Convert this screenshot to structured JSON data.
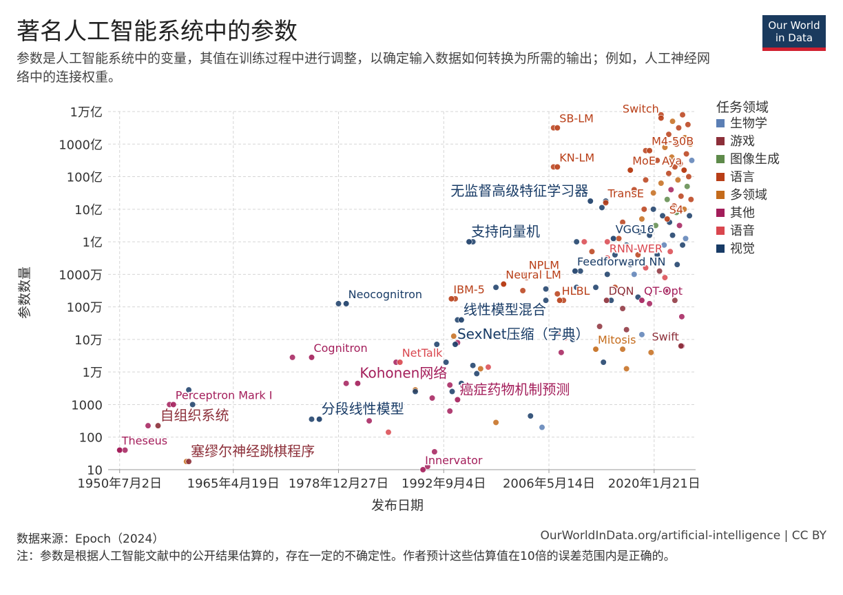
{
  "title": "著名人工智能系统中的参数",
  "subtitle": "参数是人工智能系统中的变量，其值在训练过程中进行调整，以确定输入数据如何转换为所需的输出；例如，人工神经网络中的连接权重。",
  "logo": {
    "line1": "Our World",
    "line2": "in Data",
    "bg_color": "#1a3a5e",
    "bar_color": "#d1202f"
  },
  "source_text": "数据来源：Epoch（2024）",
  "link_text": "OurWorldInData.org/artificial-intelligence | CC BY",
  "note_text": "注：参数是根据人工智能文献中的公开结果估算的，存在一定的不确定性。作者预计这些估算值在10倍的误差范围内是正确的。",
  "chart_data": {
    "type": "scatter",
    "xlabel": "发布日期",
    "ylabel": "参数数量",
    "xlim": [
      1949.0,
      2025.5
    ],
    "ylim_log10": [
      1,
      12
    ],
    "y_scale": "log",
    "grid": true,
    "x_ticks": [
      {
        "x": 1950.5,
        "label": "1950年7月2日"
      },
      {
        "x": 1965.3,
        "label": "1965年4月19日"
      },
      {
        "x": 1979.0,
        "label": "1978年12月27日"
      },
      {
        "x": 1992.7,
        "label": "1992年9月4日"
      },
      {
        "x": 2006.4,
        "label": "2006年5月14日"
      },
      {
        "x": 2020.1,
        "label": "2020年1月21日"
      }
    ],
    "y_ticks": [
      {
        "log": 1,
        "label": "10"
      },
      {
        "log": 2,
        "label": "100"
      },
      {
        "log": 3,
        "label": "1000"
      },
      {
        "log": 4,
        "label": "1万"
      },
      {
        "log": 5,
        "label": "10万"
      },
      {
        "log": 6,
        "label": "100万"
      },
      {
        "log": 7,
        "label": "1000万"
      },
      {
        "log": 8,
        "label": "1亿"
      },
      {
        "log": 9,
        "label": "10亿"
      },
      {
        "log": 10,
        "label": "100亿"
      },
      {
        "log": 11,
        "label": "1000亿"
      },
      {
        "log": 12,
        "label": "1万亿"
      }
    ],
    "legend": {
      "title": "任务领域",
      "placement": "right",
      "items": [
        {
          "name": "生物学",
          "color": "#5b7fb5"
        },
        {
          "name": "游戏",
          "color": "#8c2f39"
        },
        {
          "name": "图像生成",
          "color": "#5e8a4a"
        },
        {
          "name": "语言",
          "color": "#b83e17"
        },
        {
          "name": "多领域",
          "color": "#c46b1b"
        },
        {
          "name": "其他",
          "color": "#a31d5a"
        },
        {
          "name": "语音",
          "color": "#d9464e"
        },
        {
          "name": "视觉",
          "color": "#183b66"
        }
      ]
    },
    "labeled_points": [
      {
        "name": "Theseus",
        "x": 1950.5,
        "y": 1.6,
        "cat": "其他",
        "color": "#a31d5a"
      },
      {
        "name": "Perceptron Mark I",
        "x": 1957.5,
        "y": 3.0,
        "cat": "其他",
        "color": "#a31d5a"
      },
      {
        "name": "自组织系统",
        "x": 1955.5,
        "y": 2.35,
        "cat": "游戏",
        "color": "#8c2f39"
      },
      {
        "name": "塞缪尔神经跳棋程序",
        "x": 1959.5,
        "y": 1.25,
        "cat": "游戏",
        "color": "#8c2f39"
      },
      {
        "name": "Cognitron",
        "x": 1975.5,
        "y": 4.45,
        "cat": "其他",
        "color": "#a31d5a"
      },
      {
        "name": "Neocognitron",
        "x": 1980.0,
        "y": 6.1,
        "cat": "视觉",
        "color": "#183b66"
      },
      {
        "name": "分段线性模型",
        "x": 1976.5,
        "y": 2.55,
        "cat": "视觉",
        "color": "#183b66"
      },
      {
        "name": "Kohonen网络",
        "x": 1981.5,
        "y": 3.65,
        "cat": "其他",
        "color": "#a31d5a"
      },
      {
        "name": "NetTalk",
        "x": 1987.0,
        "y": 4.3,
        "cat": "语音",
        "color": "#d9464e"
      },
      {
        "name": "Innervator",
        "x": 1990.0,
        "y": 1.0,
        "cat": "其他",
        "color": "#a31d5a"
      },
      {
        "name": "癌症药物机制预测",
        "x": 1994.5,
        "y": 3.15,
        "cat": "其他",
        "color": "#a31d5a"
      },
      {
        "name": "SexNet压缩（字典）",
        "x": 1994.2,
        "y": 4.85,
        "cat": "视觉",
        "color": "#183b66"
      },
      {
        "name": "IBM-5",
        "x": 1993.7,
        "y": 6.25,
        "cat": "语言",
        "color": "#b83e17"
      },
      {
        "name": "线性模型混合",
        "x": 1995.0,
        "y": 5.6,
        "cat": "视觉",
        "color": "#183b66"
      },
      {
        "name": "支持向量机",
        "x": 1996.0,
        "y": 8.0,
        "cat": "视觉",
        "color": "#183b66"
      },
      {
        "name": "无监督高级特征学习器",
        "x": 2011.8,
        "y": 9.25,
        "cat": "视觉",
        "color": "#183b66"
      },
      {
        "name": "Neural LM",
        "x": 2000.5,
        "y": 6.7,
        "cat": "语言",
        "color": "#b83e17"
      },
      {
        "name": "NPLM",
        "x": 2003.5,
        "y": 7.0,
        "cat": "语言",
        "color": "#b83e17"
      },
      {
        "name": "HLBL",
        "x": 2007.8,
        "y": 6.2,
        "cat": "语言",
        "color": "#b83e17"
      },
      {
        "name": "Feedforward NN",
        "x": 2009.8,
        "y": 7.1,
        "cat": "视觉",
        "color": "#183b66"
      },
      {
        "name": "SB-LM",
        "x": 2007.5,
        "y": 11.5,
        "cat": "语言",
        "color": "#b83e17"
      },
      {
        "name": "KN-LM",
        "x": 2007.5,
        "y": 10.3,
        "cat": "语言",
        "color": "#b83e17"
      },
      {
        "name": "M4-50B",
        "x": 2019.5,
        "y": 10.8,
        "cat": "语言",
        "color": "#b83e17"
      },
      {
        "name": "Switch",
        "x": 2021.0,
        "y": 11.8,
        "cat": "语言",
        "color": "#b83e17"
      },
      {
        "name": "MoE",
        "x": 2017.0,
        "y": 10.2,
        "cat": "语言",
        "color": "#b83e17"
      },
      {
        "name": "Aya",
        "x": 2024.0,
        "y": 10.2,
        "cat": "语言",
        "color": "#b83e17"
      },
      {
        "name": "TransE",
        "x": 2013.8,
        "y": 9.2,
        "cat": "语言",
        "color": "#b83e17"
      },
      {
        "name": "S4",
        "x": 2021.8,
        "y": 8.7,
        "cat": "语言",
        "color": "#b83e17"
      },
      {
        "name": "VGG16",
        "x": 2014.8,
        "y": 8.1,
        "cat": "视觉",
        "color": "#183b66"
      },
      {
        "name": "RNN-WER",
        "x": 2014.0,
        "y": 7.5,
        "cat": "语音",
        "color": "#d9464e"
      },
      {
        "name": "DQN",
        "x": 2013.9,
        "y": 6.2,
        "cat": "游戏",
        "color": "#8c2f39"
      },
      {
        "name": "QT-Opt",
        "x": 2018.5,
        "y": 6.2,
        "cat": "其他",
        "color": "#a31d5a"
      },
      {
        "name": "Mitosis",
        "x": 2012.5,
        "y": 4.7,
        "cat": "多领域",
        "color": "#c46b1b"
      },
      {
        "name": "Swift",
        "x": 2023.6,
        "y": 4.8,
        "cat": "游戏",
        "color": "#8c2f39"
      }
    ],
    "points": [
      {
        "x": 1950.5,
        "y": 1.6,
        "c": "#a31d5a"
      },
      {
        "x": 1951.2,
        "y": 1.6,
        "c": "#a31d5a"
      },
      {
        "x": 1954.2,
        "y": 2.35,
        "c": "#a31d5a"
      },
      {
        "x": 1957.0,
        "y": 3.0,
        "c": "#a31d5a"
      },
      {
        "x": 1959.2,
        "y": 1.25,
        "c": "#c46b1b"
      },
      {
        "x": 1959.5,
        "y": 3.45,
        "c": "#183b66"
      },
      {
        "x": 1960.0,
        "y": 3.0,
        "c": "#183b66"
      },
      {
        "x": 1973.0,
        "y": 4.45,
        "c": "#a31d5a"
      },
      {
        "x": 1979.0,
        "y": 6.1,
        "c": "#183b66"
      },
      {
        "x": 1975.5,
        "y": 2.55,
        "c": "#183b66"
      },
      {
        "x": 1980.0,
        "y": 3.65,
        "c": "#a31d5a"
      },
      {
        "x": 1983.0,
        "y": 2.5,
        "c": "#a31d5a"
      },
      {
        "x": 1985.5,
        "y": 2.15,
        "c": "#d9464e"
      },
      {
        "x": 1986.5,
        "y": 4.3,
        "c": "#a31d5a"
      },
      {
        "x": 1989.0,
        "y": 3.45,
        "c": "#c46b1b"
      },
      {
        "x": 1989.0,
        "y": 3.4,
        "c": "#183b66"
      },
      {
        "x": 1990.6,
        "y": 1.1,
        "c": "#a31d5a"
      },
      {
        "x": 1991.5,
        "y": 1.55,
        "c": "#a31d5a"
      },
      {
        "x": 1991.2,
        "y": 3.2,
        "c": "#a31d5a"
      },
      {
        "x": 1991.8,
        "y": 4.85,
        "c": "#183b66"
      },
      {
        "x": 1993.0,
        "y": 4.3,
        "c": "#183b66"
      },
      {
        "x": 1993.5,
        "y": 3.6,
        "c": "#a31d5a"
      },
      {
        "x": 1993.5,
        "y": 2.8,
        "c": "#a31d5a"
      },
      {
        "x": 1993.8,
        "y": 3.4,
        "c": "#183b66"
      },
      {
        "x": 1994.2,
        "y": 6.25,
        "c": "#b83e17"
      },
      {
        "x": 1994.5,
        "y": 5.6,
        "c": "#183b66"
      },
      {
        "x": 1995.0,
        "y": 3.65,
        "c": "#183b66"
      },
      {
        "x": 1994.0,
        "y": 5.1,
        "c": "#c46b1b"
      },
      {
        "x": 1994.5,
        "y": 4.9,
        "c": "#a31d5a"
      },
      {
        "x": 1996.5,
        "y": 8.0,
        "c": "#183b66"
      },
      {
        "x": 1996.5,
        "y": 4.2,
        "c": "#183b66"
      },
      {
        "x": 1997.0,
        "y": 3.95,
        "c": "#183b66"
      },
      {
        "x": 1997.5,
        "y": 4.1,
        "c": "#c46b1b"
      },
      {
        "x": 1998.5,
        "y": 4.15,
        "c": "#d9464e"
      },
      {
        "x": 1999.5,
        "y": 2.45,
        "c": "#c46b1b"
      },
      {
        "x": 1999.5,
        "y": 6.6,
        "c": "#183b66"
      },
      {
        "x": 2000.5,
        "y": 6.7,
        "c": "#b83e17"
      },
      {
        "x": 2003.0,
        "y": 6.5,
        "c": "#b83e17"
      },
      {
        "x": 2003.0,
        "y": 7.0,
        "c": "#b83e17"
      },
      {
        "x": 2003.5,
        "y": 6.9,
        "c": "#b83e17"
      },
      {
        "x": 2006.0,
        "y": 6.55,
        "c": "#183b66"
      },
      {
        "x": 2004.0,
        "y": 2.65,
        "c": "#183b66"
      },
      {
        "x": 2005.5,
        "y": 2.3,
        "c": "#5b7fb5"
      },
      {
        "x": 2006.0,
        "y": 6.2,
        "c": "#183b66"
      },
      {
        "x": 2007.0,
        "y": 11.5,
        "c": "#b83e17"
      },
      {
        "x": 2007.0,
        "y": 10.3,
        "c": "#b83e17"
      },
      {
        "x": 2007.5,
        "y": 6.4,
        "c": "#b83e17"
      },
      {
        "x": 2008.3,
        "y": 6.2,
        "c": "#b83e17"
      },
      {
        "x": 2008.0,
        "y": 4.6,
        "c": "#a31d5a"
      },
      {
        "x": 2007.5,
        "y": 5.2,
        "c": "#d9464e"
      },
      {
        "x": 2008.5,
        "y": 5.05,
        "c": "#d9464e"
      },
      {
        "x": 2009.5,
        "y": 5.0,
        "c": "#183b66"
      },
      {
        "x": 2010.0,
        "y": 6.6,
        "c": "#183b66"
      },
      {
        "x": 2010.5,
        "y": 7.1,
        "c": "#183b66"
      },
      {
        "x": 2010.0,
        "y": 8.0,
        "c": "#183b66"
      },
      {
        "x": 2011.0,
        "y": 8.0,
        "c": "#d9464e"
      },
      {
        "x": 2012.0,
        "y": 7.7,
        "c": "#b83e17"
      },
      {
        "x": 2012.5,
        "y": 6.6,
        "c": "#183b66"
      },
      {
        "x": 2013.0,
        "y": 5.4,
        "c": "#8c2f39"
      },
      {
        "x": 2013.5,
        "y": 4.3,
        "c": "#183b66"
      },
      {
        "x": 2013.3,
        "y": 9.05,
        "c": "#183b66"
      },
      {
        "x": 2013.8,
        "y": 9.25,
        "c": "#183b66"
      },
      {
        "x": 2013.5,
        "y": 7.4,
        "c": "#d9464e"
      },
      {
        "x": 2014.0,
        "y": 8.0,
        "c": "#d9464e"
      },
      {
        "x": 2014.5,
        "y": 6.2,
        "c": "#183b66"
      },
      {
        "x": 2015.0,
        "y": 7.6,
        "c": "#183b66"
      },
      {
        "x": 2015.5,
        "y": 8.1,
        "c": "#b83e17"
      },
      {
        "x": 2016.0,
        "y": 8.6,
        "c": "#b83e17"
      },
      {
        "x": 2016.0,
        "y": 5.95,
        "c": "#8c2f39"
      },
      {
        "x": 2016.0,
        "y": 4.7,
        "c": "#c46b1b"
      },
      {
        "x": 2016.5,
        "y": 4.1,
        "c": "#c46b1b"
      },
      {
        "x": 2016.5,
        "y": 5.3,
        "c": "#8c2f39"
      },
      {
        "x": 2017.0,
        "y": 10.2,
        "c": "#b83e17"
      },
      {
        "x": 2017.5,
        "y": 9.6,
        "c": "#b83e17"
      },
      {
        "x": 2017.0,
        "y": 7.3,
        "c": "#183b66"
      },
      {
        "x": 2017.5,
        "y": 7.0,
        "c": "#5b7fb5"
      },
      {
        "x": 2018.0,
        "y": 6.3,
        "c": "#183b66"
      },
      {
        "x": 2018.5,
        "y": 5.15,
        "c": "#5b7fb5"
      },
      {
        "x": 2018.2,
        "y": 8.3,
        "c": "#183b66"
      },
      {
        "x": 2018.8,
        "y": 9.0,
        "c": "#b83e17"
      },
      {
        "x": 2019.0,
        "y": 7.2,
        "c": "#d9464e"
      },
      {
        "x": 2019.0,
        "y": 10.8,
        "c": "#b83e17"
      },
      {
        "x": 2019.5,
        "y": 6.1,
        "c": "#a31d5a"
      },
      {
        "x": 2019.7,
        "y": 4.6,
        "c": "#c46b1b"
      },
      {
        "x": 2020.0,
        "y": 9.5,
        "c": "#c46b1b"
      },
      {
        "x": 2020.3,
        "y": 8.5,
        "c": "#5e8a4a"
      },
      {
        "x": 2020.5,
        "y": 7.6,
        "c": "#183b66"
      },
      {
        "x": 2020.5,
        "y": 10.5,
        "c": "#b83e17"
      },
      {
        "x": 2021.0,
        "y": 11.9,
        "c": "#b83e17"
      },
      {
        "x": 2021.0,
        "y": 9.8,
        "c": "#c46b1b"
      },
      {
        "x": 2021.2,
        "y": 8.8,
        "c": "#183b66"
      },
      {
        "x": 2021.4,
        "y": 7.9,
        "c": "#5b7fb5"
      },
      {
        "x": 2021.5,
        "y": 10.9,
        "c": "#c46b1b"
      },
      {
        "x": 2021.6,
        "y": 6.5,
        "c": "#a31d5a"
      },
      {
        "x": 2021.8,
        "y": 9.3,
        "c": "#5e8a4a"
      },
      {
        "x": 2022.0,
        "y": 11.3,
        "c": "#b83e17"
      },
      {
        "x": 2022.0,
        "y": 10.1,
        "c": "#b83e17"
      },
      {
        "x": 2022.1,
        "y": 8.6,
        "c": "#183b66"
      },
      {
        "x": 2022.2,
        "y": 7.7,
        "c": "#d9464e"
      },
      {
        "x": 2022.3,
        "y": 9.6,
        "c": "#a31d5a"
      },
      {
        "x": 2022.4,
        "y": 10.6,
        "c": "#c46b1b"
      },
      {
        "x": 2022.5,
        "y": 11.7,
        "c": "#c46b1b"
      },
      {
        "x": 2022.5,
        "y": 8.2,
        "c": "#183b66"
      },
      {
        "x": 2022.7,
        "y": 9.1,
        "c": "#b83e17"
      },
      {
        "x": 2022.8,
        "y": 10.3,
        "c": "#b83e17"
      },
      {
        "x": 2023.0,
        "y": 11.0,
        "c": "#b83e17"
      },
      {
        "x": 2023.0,
        "y": 8.9,
        "c": "#5e8a4a"
      },
      {
        "x": 2023.1,
        "y": 7.3,
        "c": "#183b66"
      },
      {
        "x": 2023.2,
        "y": 9.9,
        "c": "#c46b1b"
      },
      {
        "x": 2023.3,
        "y": 11.5,
        "c": "#b83e17"
      },
      {
        "x": 2023.4,
        "y": 8.5,
        "c": "#a31d5a"
      },
      {
        "x": 2023.5,
        "y": 10.4,
        "c": "#b83e17"
      },
      {
        "x": 2023.6,
        "y": 9.4,
        "c": "#b83e17"
      },
      {
        "x": 2023.7,
        "y": 4.8,
        "c": "#a31d5a"
      },
      {
        "x": 2023.7,
        "y": 5.7,
        "c": "#a31d5a"
      },
      {
        "x": 2023.8,
        "y": 11.9,
        "c": "#b83e17"
      },
      {
        "x": 2023.8,
        "y": 7.9,
        "c": "#183b66"
      },
      {
        "x": 2024.0,
        "y": 10.2,
        "c": "#b83e17"
      },
      {
        "x": 2024.0,
        "y": 9.0,
        "c": "#c46b1b"
      },
      {
        "x": 2024.1,
        "y": 11.2,
        "c": "#c46b1b"
      },
      {
        "x": 2024.2,
        "y": 8.1,
        "c": "#5b7fb5"
      },
      {
        "x": 2024.3,
        "y": 10.7,
        "c": "#b83e17"
      },
      {
        "x": 2024.4,
        "y": 9.7,
        "c": "#5e8a4a"
      },
      {
        "x": 2024.5,
        "y": 11.6,
        "c": "#b83e17"
      },
      {
        "x": 2024.6,
        "y": 10.0,
        "c": "#b83e17"
      },
      {
        "x": 2024.7,
        "y": 8.8,
        "c": "#183b66"
      },
      {
        "x": 2024.8,
        "y": 11.0,
        "c": "#c46b1b"
      },
      {
        "x": 2024.9,
        "y": 9.3,
        "c": "#b83e17"
      },
      {
        "x": 2025.0,
        "y": 10.5,
        "c": "#5b7fb5"
      },
      {
        "x": 2020.8,
        "y": 7.1,
        "c": "#8c2f39"
      },
      {
        "x": 2019.5,
        "y": 8.2,
        "c": "#183b66"
      },
      {
        "x": 2018.0,
        "y": 7.6,
        "c": "#b83e17"
      },
      {
        "x": 2016.5,
        "y": 7.9,
        "c": "#183b66"
      },
      {
        "x": 2015.0,
        "y": 6.6,
        "c": "#b83e17"
      },
      {
        "x": 2014.0,
        "y": 7.0,
        "c": "#183b66"
      },
      {
        "x": 2021.5,
        "y": 6.9,
        "c": "#d9464e"
      },
      {
        "x": 2022.8,
        "y": 6.2,
        "c": "#8c2f39"
      },
      {
        "x": 2020.0,
        "y": 9.0,
        "c": "#183b66"
      },
      {
        "x": 2019.0,
        "y": 9.9,
        "c": "#b83e17"
      },
      {
        "x": 2018.5,
        "y": 8.7,
        "c": "#c46b1b"
      }
    ]
  }
}
